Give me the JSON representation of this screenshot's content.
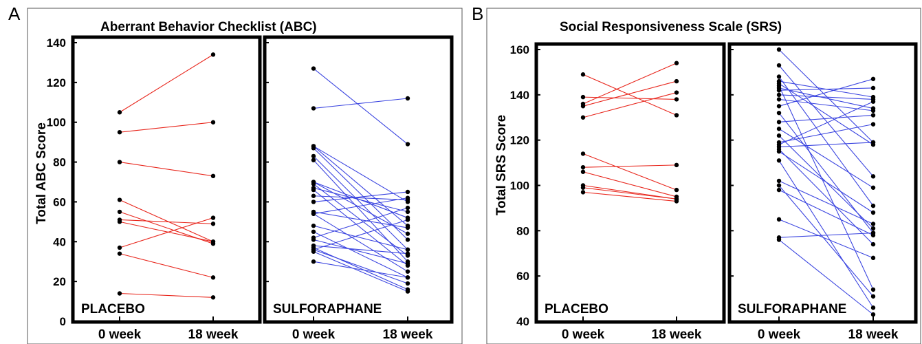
{
  "chart_data": [
    {
      "type": "slope",
      "panel_letter": "A",
      "title": "Aberrant Behavior Checklist (ABC)",
      "ylabel": "Total ABC Score",
      "ylim": [
        0,
        140
      ],
      "yticks": [
        0,
        20,
        40,
        60,
        80,
        100,
        120,
        140
      ],
      "categories": [
        "0 week",
        "18 week"
      ],
      "groups": [
        {
          "name": "PLACEBO",
          "color": "#e8261c",
          "pairs": [
            [
              105,
              134
            ],
            [
              95,
              100
            ],
            [
              80,
              73
            ],
            [
              61,
              40
            ],
            [
              55,
              39
            ],
            [
              51,
              49
            ],
            [
              50,
              40
            ],
            [
              37,
              52
            ],
            [
              34,
              22
            ],
            [
              14,
              12
            ]
          ]
        },
        {
          "name": "SULFORAPHANE",
          "color": "#3b45e0",
          "pairs": [
            [
              127,
              89
            ],
            [
              107,
              112
            ],
            [
              88,
              60
            ],
            [
              88,
              48
            ],
            [
              87,
              41
            ],
            [
              83,
              36
            ],
            [
              81,
              30
            ],
            [
              70,
              52
            ],
            [
              70,
              44
            ],
            [
              69,
              33
            ],
            [
              67,
              55
            ],
            [
              66,
              28
            ],
            [
              63,
              61
            ],
            [
              60,
              65
            ],
            [
              55,
              47
            ],
            [
              54,
              62
            ],
            [
              54,
              25
            ],
            [
              48,
              36
            ],
            [
              45,
              22
            ],
            [
              42,
              57
            ],
            [
              41,
              29
            ],
            [
              38,
              34
            ],
            [
              37,
              16
            ],
            [
              36,
              51
            ],
            [
              36,
              19
            ],
            [
              35,
              15
            ],
            [
              30,
              22
            ]
          ]
        }
      ]
    },
    {
      "type": "slope",
      "panel_letter": "B",
      "title": "Social Responsiveness Scale (SRS)",
      "ylabel": "Total SRS Score",
      "ylim": [
        40,
        160
      ],
      "yticks": [
        40,
        60,
        80,
        100,
        120,
        140,
        160
      ],
      "categories": [
        "0 week",
        "18 week"
      ],
      "groups": [
        {
          "name": "PLACEBO",
          "color": "#e8261c",
          "pairs": [
            [
              149,
              131
            ],
            [
              139,
              138
            ],
            [
              136,
              154
            ],
            [
              135,
              146
            ],
            [
              130,
              141
            ],
            [
              114,
              98
            ],
            [
              108,
              109
            ],
            [
              106,
              95
            ],
            [
              100,
              94
            ],
            [
              99,
              94
            ],
            [
              97,
              93
            ]
          ]
        },
        {
          "name": "SULFORAPHANE",
          "color": "#3b45e0",
          "pairs": [
            [
              160,
              119
            ],
            [
              153,
              104
            ],
            [
              148,
              91
            ],
            [
              146,
              139
            ],
            [
              145,
              118
            ],
            [
              144,
              54
            ],
            [
              143,
              134
            ],
            [
              142,
              143
            ],
            [
              140,
              138
            ],
            [
              138,
              133
            ],
            [
              135,
              147
            ],
            [
              132,
              79
            ],
            [
              128,
              131
            ],
            [
              125,
              99
            ],
            [
              122,
              81
            ],
            [
              119,
              127
            ],
            [
              118,
              137
            ],
            [
              117,
              119
            ],
            [
              116,
              74
            ],
            [
              115,
              88
            ],
            [
              111,
              46
            ],
            [
              102,
              83
            ],
            [
              100,
              51
            ],
            [
              98,
              78
            ],
            [
              85,
              68
            ],
            [
              77,
              79
            ],
            [
              76,
              43
            ]
          ]
        }
      ]
    }
  ]
}
